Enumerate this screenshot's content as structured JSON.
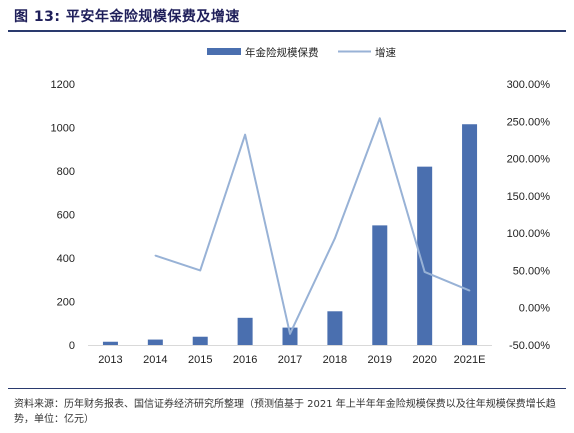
{
  "figure": {
    "title": "图 13:  平安年金险规模保费及增速",
    "source": "资料来源：历年财务报表、国信证券经济研究所整理（预测值基于 2021 年上半年年金险规模保费以及往年规模保费增长趋势，单位：亿元）"
  },
  "colors": {
    "bar": "#4a6faf",
    "line": "#98b2d6",
    "axis": "#d9d9d9"
  },
  "chart_data": {
    "type": "bar",
    "categories": [
      "2013",
      "2014",
      "2015",
      "2016",
      "2017",
      "2018",
      "2019",
      "2020",
      "2021E"
    ],
    "series": [
      {
        "name": "年金险规模保费",
        "type": "bar",
        "axis": "left",
        "values": [
          15,
          25,
          38,
          125,
          80,
          155,
          550,
          820,
          1015
        ]
      },
      {
        "name": "增速",
        "type": "line",
        "axis": "right",
        "values": [
          null,
          70.0,
          50.0,
          232.0,
          -35.0,
          93.0,
          254.0,
          48.0,
          23.0
        ]
      }
    ],
    "y_left": {
      "min": 0,
      "max": 1200,
      "ticks": [
        0,
        200,
        400,
        600,
        800,
        1000,
        1200
      ]
    },
    "y_right": {
      "min": -50,
      "max": 300,
      "ticks": [
        -50,
        0,
        50,
        100,
        150,
        200,
        250,
        300
      ],
      "tick_labels": [
        "-50.00%",
        "0.00%",
        "50.00%",
        "100.00%",
        "150.00%",
        "200.00%",
        "250.00%",
        "300.00%"
      ]
    },
    "legend": {
      "position": "top-center"
    },
    "grid": false
  }
}
